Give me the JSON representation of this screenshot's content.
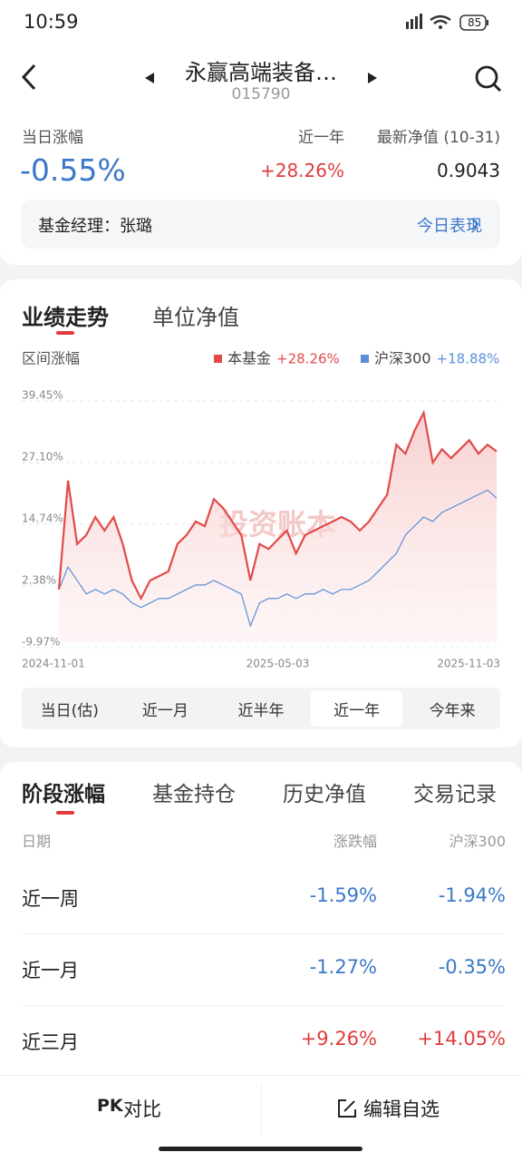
{
  "status": {
    "time": "10:59",
    "battery": "85"
  },
  "header": {
    "title": "永赢高端装备…",
    "code": "015790"
  },
  "stats": {
    "day_label": "当日涨幅",
    "day_value": "-0.55%",
    "year_label": "近一年",
    "year_value": "+28.26%",
    "nav_label": "最新净值 (10-31)",
    "nav_value": "0.9043"
  },
  "manager": {
    "text": "基金经理：张璐",
    "link": "今日表现"
  },
  "chart_tabs": [
    "业绩走势",
    "单位净值"
  ],
  "chart_data": {
    "type": "line",
    "subtitle": "区间涨幅",
    "watermark": "投资账本",
    "legend_values": [
      "+28.26%",
      "+18.88%"
    ],
    "categories": [
      "2024-11-01",
      null,
      null,
      null,
      null,
      null,
      null,
      null,
      null,
      null,
      null,
      null,
      null,
      null,
      null,
      null,
      null,
      null,
      null,
      null,
      null,
      null,
      null,
      null,
      "2025-05-03",
      null,
      null,
      null,
      null,
      null,
      null,
      null,
      null,
      null,
      null,
      null,
      null,
      null,
      null,
      null,
      null,
      null,
      null,
      null,
      null,
      null,
      null,
      null,
      "2025-11-03"
    ],
    "series": [
      {
        "name": "本基金",
        "color": "#e14a4a",
        "values": [
          0.6,
          22.4,
          9.7,
          11.5,
          15.1,
          12.4,
          15.1,
          9.7,
          2.4,
          -1.2,
          2.4,
          3.3,
          4.2,
          9.7,
          11.5,
          14.2,
          13.3,
          18.7,
          16.9,
          14.2,
          11.5,
          2.4,
          9.7,
          8.7,
          10.6,
          12.4,
          7.8,
          11.5,
          12.4,
          13.3,
          14.2,
          15.1,
          14.2,
          12.4,
          14.2,
          16.9,
          19.6,
          29.6,
          27.8,
          32.4,
          36.0,
          26.0,
          28.7,
          26.9,
          28.7,
          30.5,
          27.8,
          29.6,
          28.26
        ]
      },
      {
        "name": "沪深300",
        "color": "#5b8fd9",
        "values": [
          0.6,
          5.1,
          2.4,
          -0.3,
          0.6,
          -0.3,
          0.6,
          -0.3,
          -2.1,
          -3.0,
          -2.1,
          -1.2,
          -1.2,
          -0.3,
          0.6,
          1.5,
          1.5,
          2.4,
          1.5,
          0.6,
          -0.3,
          -6.7,
          -2.1,
          -1.2,
          -1.2,
          -0.3,
          -1.2,
          -0.3,
          -0.3,
          0.6,
          -0.3,
          0.6,
          0.6,
          1.5,
          2.4,
          4.2,
          6.0,
          7.8,
          11.5,
          13.3,
          15.1,
          14.2,
          16.0,
          16.9,
          17.8,
          18.7,
          19.6,
          20.5,
          18.88
        ]
      }
    ],
    "ylim": [
      -9.97,
      39.45
    ],
    "yticks": [
      {
        "value": 39.45,
        "label": "39.45%"
      },
      {
        "value": 27.1,
        "label": "27.10%"
      },
      {
        "value": 14.74,
        "label": "14.74%"
      },
      {
        "value": 2.38,
        "label": "2.38%"
      },
      {
        "value": -9.97,
        "label": "-9.97%"
      }
    ],
    "grid": true
  },
  "periods": [
    "当日(估)",
    "近一月",
    "近半年",
    "近一年",
    "今年来"
  ],
  "selected_period": 3,
  "section_tabs": [
    "阶段涨幅",
    "基金持仓",
    "历史净值",
    "交易记录"
  ],
  "table": {
    "header": [
      "日期",
      "涨跌幅",
      "沪深300"
    ],
    "rows": [
      [
        "近一周",
        "-1.59%",
        "-1.94%"
      ],
      [
        "近一月",
        "-1.27%",
        "-0.35%"
      ],
      [
        "近三月",
        "+9.26%",
        "+14.05%"
      ]
    ]
  },
  "bottom": {
    "pk": "PK",
    "compare": "对比",
    "edit": "编辑自选"
  }
}
